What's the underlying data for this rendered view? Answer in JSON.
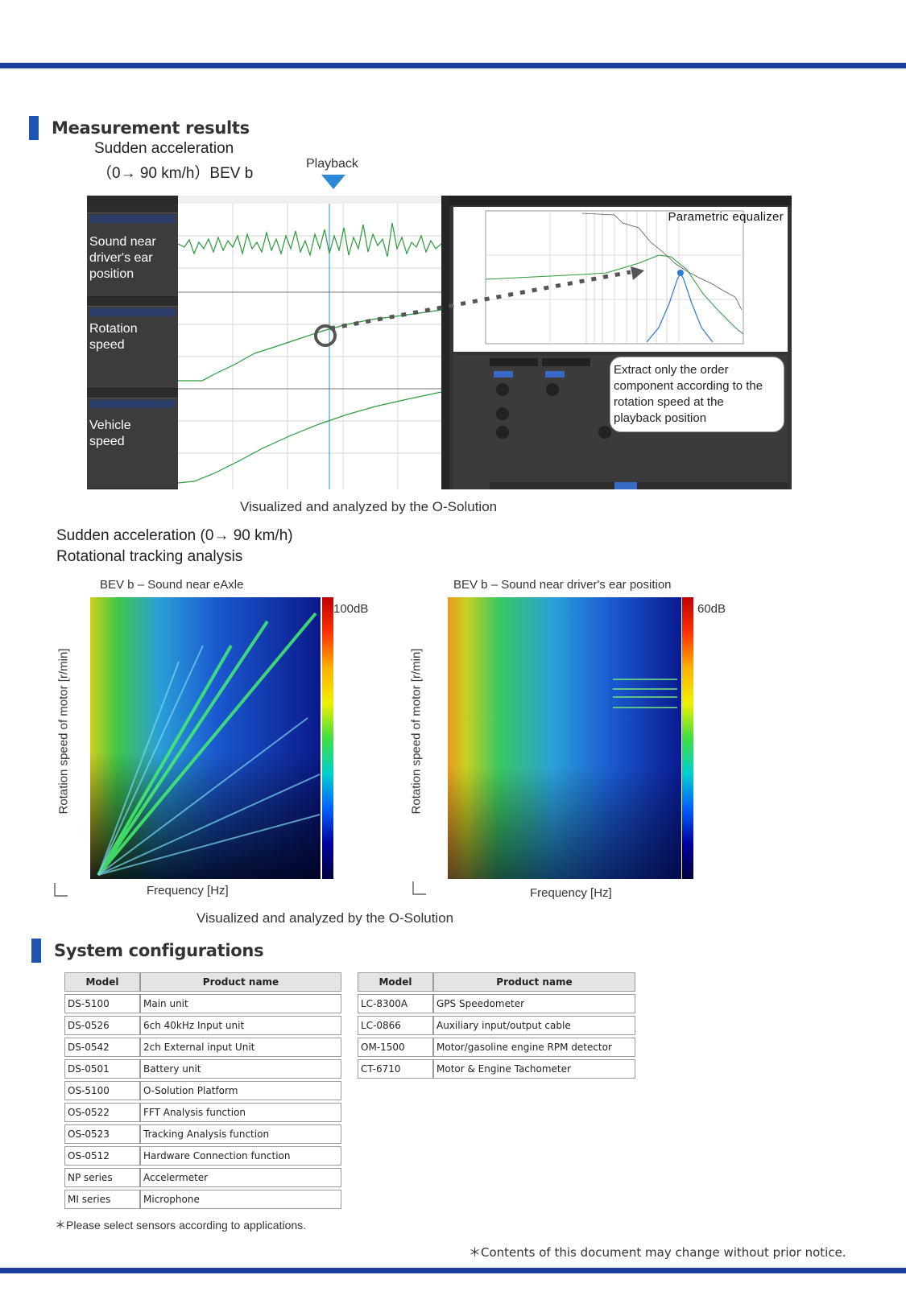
{
  "measurement": {
    "heading": "Measurement results",
    "subtitle_line1": "Sudden acceleration",
    "subtitle_line2": "（0→ 90 km/h）BEV b",
    "playback_label": "Playback",
    "panels": [
      {
        "label_l1": "Sound near",
        "label_l2": "driver's ear",
        "label_l3": "position"
      },
      {
        "label_l1": "Rotation",
        "label_l2": "speed",
        "label_l3": ""
      },
      {
        "label_l1": "Vehicle",
        "label_l2": "speed",
        "label_l3": ""
      }
    ],
    "eq_title": "Parametric equalizer",
    "callout_l1": "Extract only the order",
    "callout_l2": "component according to the",
    "callout_l3": "rotation speed at the",
    "callout_l4": "playback position",
    "caption": "Visualized and analyzed by the O-Solution"
  },
  "tracking": {
    "title_l1": "Sudden acceleration (0→ 90 km/h)",
    "title_l2": "Rotational tracking analysis",
    "left": {
      "title": "BEV b – Sound near eAxle",
      "ylabel": "Rotation speed of motor [r/min]",
      "xlabel": "Frequency [Hz]",
      "colorbar_max": "100dB"
    },
    "right": {
      "title": "BEV b – Sound near driver's ear position",
      "ylabel": "Rotation speed of motor [r/min]",
      "xlabel": "Frequency  [Hz]",
      "colorbar_max": "60dB"
    },
    "caption": "Visualized and analyzed by the O-Solution"
  },
  "system": {
    "heading": "System configurations",
    "col_model": "Model",
    "col_product": "Product name",
    "table1": [
      {
        "model": "DS-5100",
        "product": "Main unit"
      },
      {
        "model": "DS-0526",
        "product": "6ch 40kHz Input unit"
      },
      {
        "model": "DS-0542",
        "product": "2ch External input Unit"
      },
      {
        "model": "DS-0501",
        "product": "Battery unit"
      },
      {
        "model": "OS-5100",
        "product": "O-Solution Platform"
      },
      {
        "model": "OS-0522",
        "product": "FFT Analysis function"
      },
      {
        "model": "OS-0523",
        "product": "Tracking Analysis function"
      },
      {
        "model": "OS-0512",
        "product": "Hardware Connection function"
      },
      {
        "model": "NP series",
        "product": "Accelermeter"
      },
      {
        "model": "MI series",
        "product": "Microphone"
      }
    ],
    "table2": [
      {
        "model": "LC-8300A",
        "product": "GPS Speedometer"
      },
      {
        "model": "LC-0866",
        "product": "Auxiliary input/output cable"
      },
      {
        "model": "OM-1500",
        "product": "Motor/gasoline engine RPM detector"
      },
      {
        "model": "CT-6710",
        "product": "Motor & Engine Tachometer"
      }
    ],
    "note": "＊Please select sensors according to applications."
  },
  "footer_note": "＊Contents of this document may change without prior notice.",
  "colors": {
    "accent": "#1b3f9a",
    "bar": "#1b55b0"
  }
}
